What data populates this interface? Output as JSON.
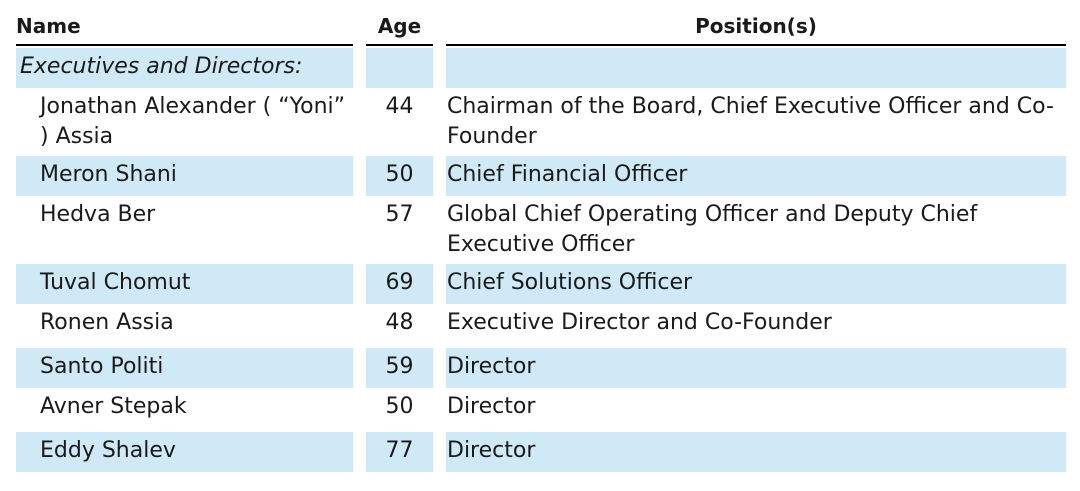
{
  "headers": {
    "name": "Name",
    "age": "Age",
    "position": "Position(s)"
  },
  "section_label": "Executives and Directors:",
  "rows": [
    {
      "name": "Jonathan Alexander ( “Yoni” ) Assia",
      "age": "44",
      "position": "Chairman of the Board, Chief Executive Officer and Co-Founder"
    },
    {
      "name": "Meron Shani",
      "age": "50",
      "position": "Chief Financial Officer"
    },
    {
      "name": "Hedva Ber",
      "age": "57",
      "position": "Global Chief Operating Officer and Deputy Chief Executive Officer"
    },
    {
      "name": "Tuval Chomut",
      "age": "69",
      "position": "Chief Solutions Officer"
    },
    {
      "name": "Ronen Assia",
      "age": "48",
      "position": "Executive Director and Co-Founder"
    },
    {
      "name": "Santo Politi",
      "age": "59",
      "position": "Director"
    },
    {
      "name": "Avner Stepak",
      "age": "50",
      "position": "Director"
    },
    {
      "name": "Eddy Shalev",
      "age": "77",
      "position": "Director"
    }
  ],
  "colors": {
    "row_shade": "#cfe9f7",
    "rule": "#000000"
  }
}
